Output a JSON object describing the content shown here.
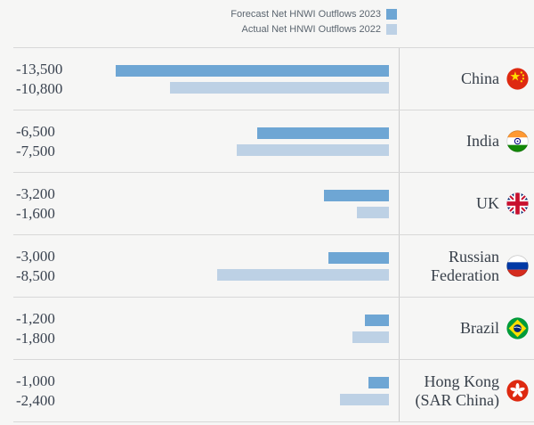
{
  "legend": {
    "items": [
      {
        "label": "Forecast Net HNWI Outflows 2023",
        "color": "#6ea6d4"
      },
      {
        "label": "Actual Net HNWI Outflows 2022",
        "color": "#bdd1e5"
      }
    ]
  },
  "chart_data": {
    "type": "bar",
    "orientation": "horizontal",
    "title": "",
    "categories": [
      "China",
      "India",
      "UK",
      "Russian Federation",
      "Brazil",
      "Hong Kong (SAR China)"
    ],
    "country_display": [
      "China",
      "India",
      "UK",
      "Russian\nFederation",
      "Brazil",
      "Hong Kong\n(SAR China)"
    ],
    "flags": [
      "china",
      "india",
      "uk",
      "russia",
      "brazil",
      "hong-kong"
    ],
    "series": [
      {
        "name": "Forecast Net HNWI Outflows 2023",
        "color": "#6ea6d4",
        "values": [
          -13500,
          -6500,
          -3200,
          -3000,
          -1200,
          -1000
        ],
        "labels": [
          "-13,500",
          "-6,500",
          "-3,200",
          "-3,000",
          "-1,200",
          "-1,000"
        ]
      },
      {
        "name": "Actual Net HNWI Outflows 2022",
        "color": "#bdd1e5",
        "values": [
          -10800,
          -7500,
          -1600,
          -8500,
          -1800,
          -2400
        ],
        "labels": [
          "-10,800",
          "-7,500",
          "-1,600",
          "-8,500",
          "-1,800",
          "-2,400"
        ]
      }
    ],
    "xlim": [
      -13500,
      0
    ],
    "grid": false,
    "legend_position": "top-right",
    "bars_grow_from": "right"
  },
  "colors": {
    "background": "#f6f6f5",
    "row_line": "#d8d8d8",
    "divider": "#cccccc",
    "value_text": "#3a4350",
    "country_text": "#38404a",
    "legend_text": "#5c6670"
  }
}
